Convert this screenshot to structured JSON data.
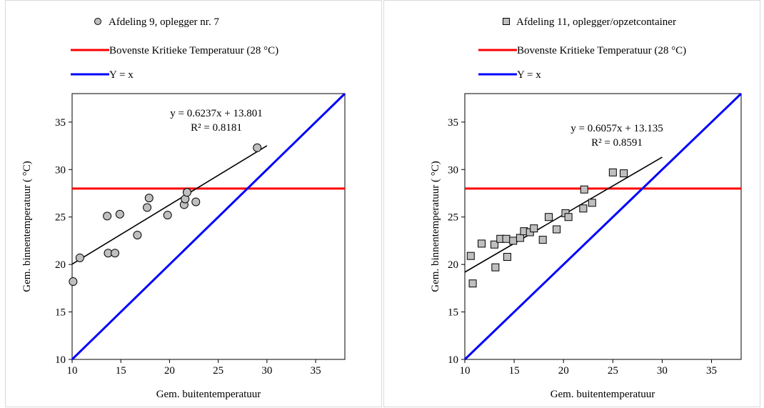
{
  "chart_data": [
    {
      "type": "scatter",
      "xlabel": "Gem. buitentemperatuur",
      "ylabel": "Gem. binnentemperatuur  ( °C)",
      "xlim": [
        10,
        38
      ],
      "ylim": [
        10,
        38
      ],
      "xticks": [
        "10",
        "15",
        "20",
        "25",
        "30",
        "35"
      ],
      "yticks": [
        "10",
        "15",
        "20",
        "25",
        "30",
        "35"
      ],
      "grid": false,
      "legend_position": "top",
      "marker": "circle",
      "legend": {
        "series_name": "Afdeling 9, oplegger nr. 7",
        "threshold_name": "Bovenste Kritieke Temperatuur (28 °C)",
        "identity_name": "Y = x"
      },
      "series": [
        {
          "name": "Afdeling 9, oplegger nr. 7",
          "points": [
            [
              10.1,
              18.2
            ],
            [
              10.8,
              20.7
            ],
            [
              13.6,
              25.1
            ],
            [
              13.7,
              21.2
            ],
            [
              14.4,
              21.2
            ],
            [
              14.9,
              25.3
            ],
            [
              16.7,
              23.1
            ],
            [
              17.7,
              26.0
            ],
            [
              17.9,
              27.0
            ],
            [
              19.8,
              25.2
            ],
            [
              21.5,
              26.3
            ],
            [
              21.6,
              26.9
            ],
            [
              21.8,
              27.6
            ],
            [
              22.7,
              26.6
            ],
            [
              29.0,
              32.3
            ]
          ]
        }
      ],
      "threshold": 28,
      "trendline": {
        "slope": 0.6237,
        "intercept": 13.801,
        "x_range": [
          10,
          30
        ]
      },
      "equation_text": "y = 0.6237x + 13.801",
      "r2_text": "R² = 0.8181",
      "colors": {
        "marker_fill": "#bfbfbf",
        "threshold": "#ff0000",
        "identity": "#0000ff",
        "trend": "#000000"
      }
    },
    {
      "type": "scatter",
      "xlabel": "Gem. buitentemperatuur",
      "ylabel": "Gem. binnentemperatuur  ( °C)",
      "xlim": [
        10,
        38
      ],
      "ylim": [
        10,
        38
      ],
      "xticks": [
        "10",
        "15",
        "20",
        "25",
        "30",
        "35"
      ],
      "yticks": [
        "10",
        "15",
        "20",
        "25",
        "30",
        "35"
      ],
      "grid": false,
      "legend_position": "top",
      "marker": "square",
      "legend": {
        "series_name": "Afdeling 11, oplegger/opzetcontainer",
        "threshold_name": "Bovenste Kritieke Temperatuur (28 °C)",
        "identity_name": "Y = x"
      },
      "series": [
        {
          "name": "Afdeling 11, oplegger/opzetcontainer",
          "points": [
            [
              10.6,
              20.9
            ],
            [
              10.8,
              18.0
            ],
            [
              11.7,
              22.2
            ],
            [
              13.0,
              22.1
            ],
            [
              13.1,
              19.7
            ],
            [
              13.6,
              22.7
            ],
            [
              14.2,
              22.7
            ],
            [
              14.3,
              20.8
            ],
            [
              14.9,
              22.5
            ],
            [
              15.6,
              22.8
            ],
            [
              16.0,
              23.5
            ],
            [
              16.6,
              23.4
            ],
            [
              17.0,
              23.8
            ],
            [
              17.9,
              22.6
            ],
            [
              18.5,
              25.0
            ],
            [
              19.3,
              23.7
            ],
            [
              20.2,
              25.4
            ],
            [
              20.5,
              25.0
            ],
            [
              22.0,
              25.9
            ],
            [
              22.1,
              27.9
            ],
            [
              22.9,
              26.5
            ],
            [
              25.0,
              29.7
            ],
            [
              26.1,
              29.6
            ]
          ]
        }
      ],
      "threshold": 28,
      "trendline": {
        "slope": 0.6057,
        "intercept": 13.135,
        "x_range": [
          10,
          30
        ]
      },
      "equation_text": "y = 0.6057x + 13.135",
      "r2_text": "R² = 0.8591",
      "colors": {
        "marker_fill": "#bfbfbf",
        "threshold": "#ff0000",
        "identity": "#0000ff",
        "trend": "#000000"
      }
    }
  ]
}
